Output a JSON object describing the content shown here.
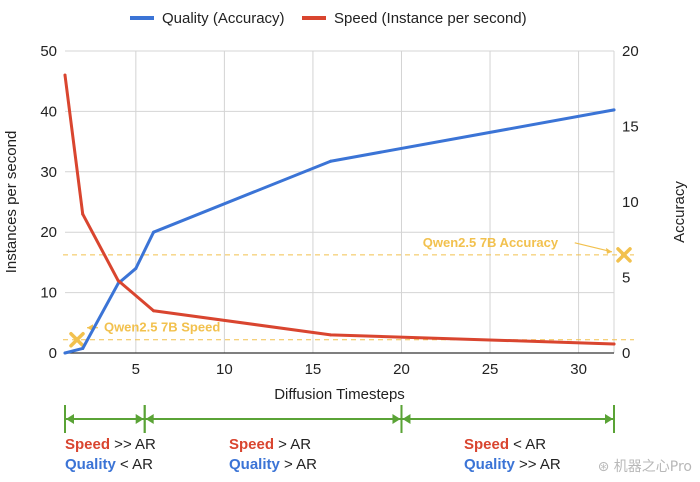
{
  "chart_data": {
    "type": "line",
    "xlabel": "Diffusion Timesteps",
    "ylabel_left": "Instances per second",
    "ylabel_right": "Accuracy",
    "xlim": [
      1,
      32
    ],
    "ylim_left": [
      0,
      50
    ],
    "ylim_right": [
      0,
      20
    ],
    "xticks": [
      5,
      10,
      15,
      20,
      25,
      30
    ],
    "yticks_left": [
      0,
      10,
      20,
      30,
      40,
      50
    ],
    "yticks_right": [
      0,
      5,
      10,
      15,
      20
    ],
    "grid": true,
    "legend_position": "top",
    "series": [
      {
        "name": "Quality (Accuracy)",
        "axis": "right",
        "color": "#3b74d6",
        "x": [
          1,
          2,
          4,
          5,
          6,
          16,
          32
        ],
        "values": [
          0,
          0.3,
          4.6,
          5.6,
          8.0,
          12.7,
          16.1
        ]
      },
      {
        "name": "Speed (Instance per second)",
        "axis": "left",
        "color": "#d9452f",
        "x": [
          1,
          2,
          4,
          6,
          16,
          32
        ],
        "values": [
          46,
          23,
          12,
          7,
          3,
          1.5
        ]
      }
    ],
    "annotations": [
      {
        "text": "Qwen2.5 7B Accuracy",
        "axis": "right",
        "value": 6.5,
        "color": "#f2c14e",
        "marker_x": 32,
        "label_x": 21.2
      },
      {
        "text": "Qwen2.5 7B Speed",
        "axis": "left",
        "value": 2.2,
        "color": "#f2c14e",
        "marker_x": 1,
        "label_x": 3.2
      }
    ],
    "regions": [
      {
        "from": 1,
        "to": 5.5,
        "speed_label": "Speed",
        "speed_rel": ">> AR",
        "quality_label": "Quality",
        "quality_rel": "< AR"
      },
      {
        "from": 5.5,
        "to": 20,
        "speed_label": "Speed",
        "speed_rel": "> AR",
        "quality_label": "Quality",
        "quality_rel": "> AR"
      },
      {
        "from": 20,
        "to": 32,
        "speed_label": "Speed",
        "speed_rel": "< AR",
        "quality_label": "Quality",
        "quality_rel": ">> AR"
      }
    ],
    "region_color": "#5aa336"
  },
  "watermark": "机器之心Pro"
}
